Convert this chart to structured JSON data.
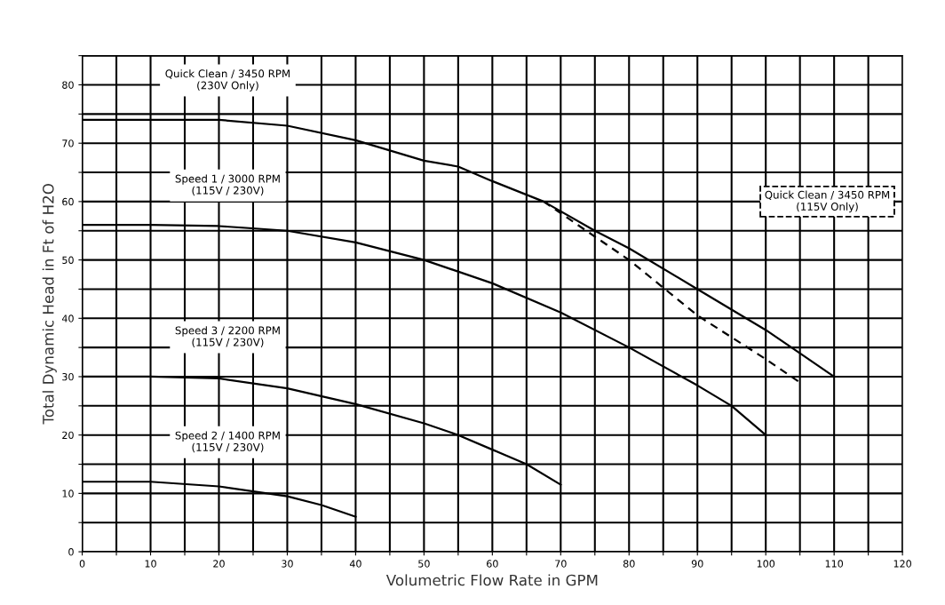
{
  "chart_data": {
    "type": "line",
    "xlabel": "Volumetric Flow Rate in GPM",
    "ylabel": "Total Dynamic Head in Ft of H2O",
    "xlim": [
      0,
      120
    ],
    "ylim": [
      0,
      85
    ],
    "xticks": [
      0,
      {
        "value": 5,
        "label": null
      },
      10,
      {
        "value": 15,
        "label": null
      },
      20,
      {
        "value": 25,
        "label": null
      },
      30,
      {
        "value": 35,
        "label": null
      },
      40,
      {
        "value": 45,
        "label": null
      },
      50,
      {
        "value": 55,
        "label": null
      },
      60,
      {
        "value": 65,
        "label": null
      },
      70,
      {
        "value": 75,
        "label": null
      },
      80,
      {
        "value": 85,
        "label": null
      },
      90,
      {
        "value": 95,
        "label": null
      },
      100,
      {
        "value": 105,
        "label": null
      },
      110,
      {
        "value": 115,
        "label": null
      },
      120
    ],
    "yticks": [
      0,
      {
        "value": 5,
        "label": null
      },
      10,
      {
        "value": 15,
        "label": null
      },
      20,
      {
        "value": 25,
        "label": null
      },
      30,
      {
        "value": 35,
        "label": null
      },
      40,
      {
        "value": 45,
        "label": null
      },
      50,
      {
        "value": 55,
        "label": null
      },
      60,
      {
        "value": 65,
        "label": null
      },
      70,
      {
        "value": 75,
        "label": null
      },
      80,
      {
        "value": 85,
        "label": null
      }
    ],
    "grid": true,
    "marker": "none",
    "series": [
      {
        "name": "Quick Clean / 3450 RPM\n(230V Only)",
        "color": "#000000",
        "line_style": "solid",
        "x": [
          0,
          10,
          20,
          30,
          40,
          50,
          55,
          60,
          67.5,
          75,
          80,
          90,
          100,
          105,
          110
        ],
        "values": [
          74,
          74,
          74,
          73,
          70.5,
          67,
          66,
          63.5,
          60,
          55,
          52,
          45,
          38,
          34,
          30
        ]
      },
      {
        "name": "Quick Clean / 3450 RPM\n(115V Only)",
        "color": "#000000",
        "line_style": "dashed",
        "x": [
          67.5,
          75,
          80,
          90,
          100,
          105
        ],
        "values": [
          60,
          54,
          50,
          40.5,
          33,
          29
        ]
      },
      {
        "name": "Speed 1 / 3000 RPM\n(115V / 230V)",
        "color": "#000000",
        "line_style": "solid",
        "x": [
          0,
          10,
          20,
          30,
          40,
          50,
          60,
          70,
          80,
          90,
          95,
          100
        ],
        "values": [
          56,
          56,
          55.8,
          55,
          53,
          50,
          46,
          41,
          35,
          28.5,
          25,
          20
        ]
      },
      {
        "name": "Speed 3 / 2200 RPM\n(115V / 230V)",
        "color": "#000000",
        "line_style": "solid",
        "x": [
          0,
          10,
          20,
          30,
          40,
          50,
          55,
          60,
          65,
          70
        ],
        "values": [
          30,
          30,
          29.7,
          28,
          25.3,
          22,
          20,
          17.5,
          15,
          11.5
        ]
      },
      {
        "name": "Speed 2 / 1400 RPM\n(115V / 230V)",
        "color": "#000000",
        "line_style": "solid",
        "x": [
          0,
          10,
          20,
          30,
          35,
          40
        ],
        "values": [
          12,
          12,
          11.2,
          9.5,
          8,
          6
        ]
      }
    ]
  }
}
